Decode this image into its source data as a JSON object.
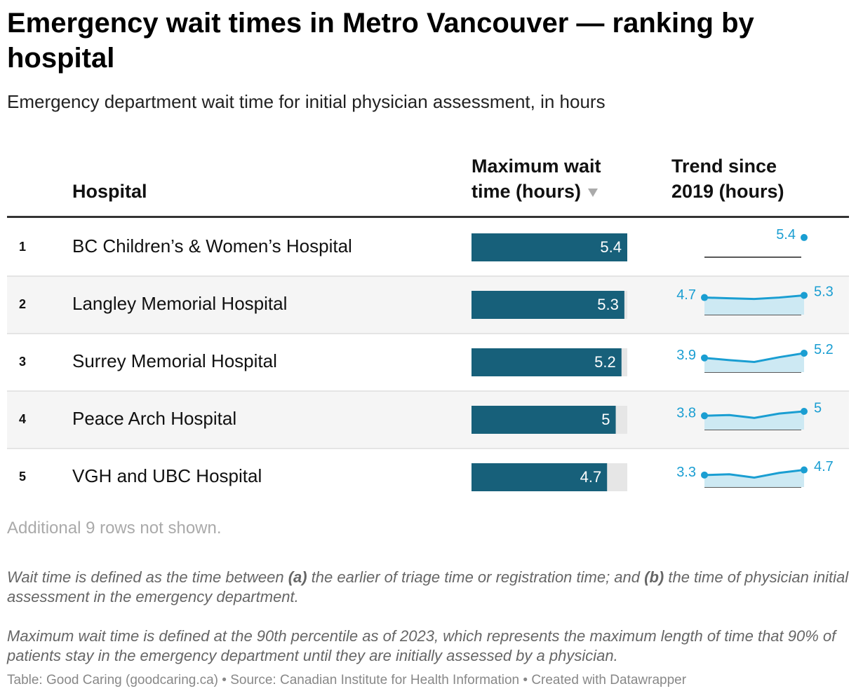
{
  "header": {
    "title": "Emergency wait times in Metro Vancouver — ranking by hospital",
    "subtitle": "Emergency department wait time for initial physician assessment, in hours"
  },
  "table": {
    "columns": [
      "Hospital",
      "Maximum wait time (hours)",
      "Trend since 2019 (hours)"
    ],
    "rows": [
      {
        "rank": 1,
        "hospital": "BC Children’s & Women’s Hospital",
        "max_wait": 5.4,
        "trend": [
          null,
          null,
          null,
          null,
          5.4
        ]
      },
      {
        "rank": 2,
        "hospital": "Langley Memorial Hospital",
        "max_wait": 5.3,
        "trend": [
          4.7,
          4.5,
          4.3,
          4.7,
          5.3
        ]
      },
      {
        "rank": 3,
        "hospital": "Surrey Memorial Hospital",
        "max_wait": 5.2,
        "trend": [
          3.9,
          3.3,
          2.8,
          4.1,
          5.2
        ]
      },
      {
        "rank": 4,
        "hospital": "Peace Arch Hospital",
        "max_wait": 5,
        "trend": [
          3.8,
          4.0,
          3.2,
          4.4,
          5
        ]
      },
      {
        "rank": 5,
        "hospital": "VGH and UBC Hospital",
        "max_wait": 4.7,
        "trend": [
          3.3,
          3.5,
          2.6,
          3.9,
          4.7
        ]
      }
    ],
    "more_rows": "Additional 9 rows not shown."
  },
  "notes": [
    [
      "Wait time is defined as the time between ",
      "(a)",
      " the earlier of triage time or registration time; and ",
      "(b)",
      " the time of physician initial assessment in the emergency department."
    ],
    [
      "Maximum wait time is defined at the 90th percentile as of 2023, which represents the maximum length of time that 90% of patients stay in the emergency department until they are initially assessed by a physician."
    ]
  ],
  "footer": "Table: Good Caring (goodcaring.ca) • Source: Canadian Institute for Health Information • Created with Datawrapper"
}
